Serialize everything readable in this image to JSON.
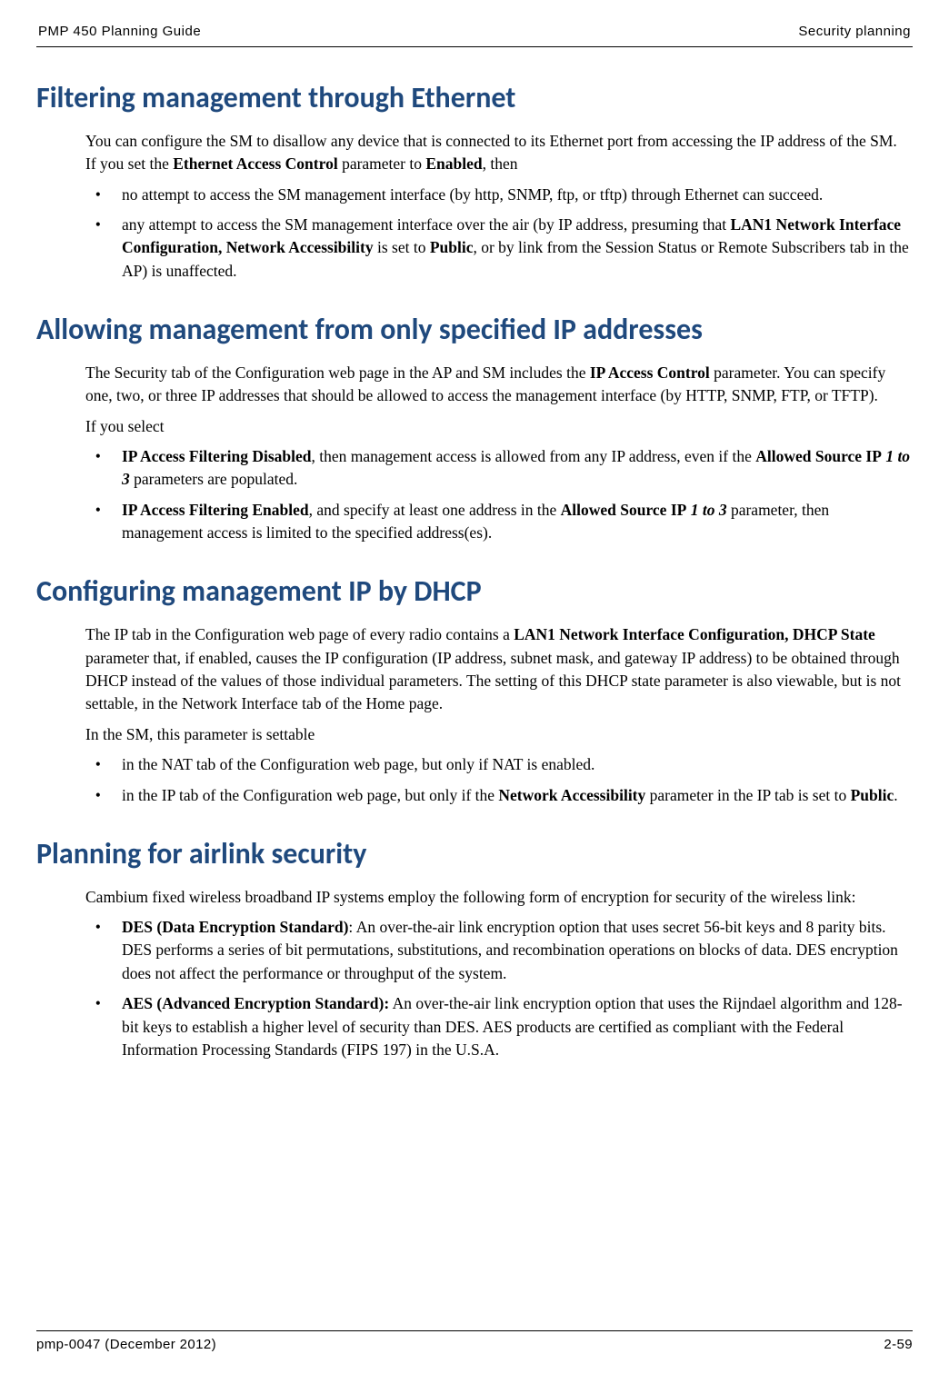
{
  "header": {
    "left": "PMP 450 Planning Guide",
    "right": "Security planning"
  },
  "footer": {
    "left": "pmp-0047 (December 2012)",
    "right": "2-59"
  },
  "colors": {
    "heading": "#1f497d",
    "body_text": "#000000",
    "background": "#ffffff",
    "rule": "#000000"
  },
  "typography": {
    "heading_family": "Calibri",
    "heading_size_pt": 24,
    "heading_weight": 700,
    "body_family": "Times New Roman",
    "body_size_pt": 13,
    "header_footer_family": "Verdana",
    "header_footer_size_pt": 11
  },
  "sections": [
    {
      "heading": "Filtering management through Ethernet",
      "intro_html": "You can configure the SM to disallow any device that is connected to its Ethernet port from accessing the IP address of the SM. If you set the <b>Ethernet Access Control</b> parameter to <b>Enabled</b>, then",
      "bullets_html": [
        "no attempt to access the SM management interface (by http, SNMP, ftp, or tftp) through Ethernet can succeed.",
        "any attempt to access the SM management interface over the air (by IP address, presuming that <b>LAN1 Network Interface Configuration, Network Accessibility</b> is set to <b>Public</b>, or by link from the Session Status or Remote Subscribers tab in the AP) is unaffected."
      ]
    },
    {
      "heading": "Allowing management from only specified IP addresses",
      "intro_html": "The Security tab of the Configuration web page in the AP and SM includes the <b>IP Access Control</b> parameter. You can specify one, two, or three IP addresses that should be allowed to access the management interface (by HTTP, SNMP, FTP, or TFTP).",
      "intro2_html": "If you select",
      "bullets_html": [
        "<b>IP Access Filtering Disabled</b>, then management access is allowed from any IP address, even if the <b>Allowed Source IP</b> <b><i>1 to 3</i></b> parameters are populated.",
        "<b>IP Access Filtering Enabled</b>, and specify at least one address in the <b>Allowed Source IP</b> <b><i>1 to 3</i></b> parameter, then management access is limited to the specified address(es)."
      ]
    },
    {
      "heading": "Configuring management IP by DHCP",
      "intro_html": "The IP tab in the Configuration web page of every radio contains a <b>LAN1 Network Interface Configuration, DHCP State</b> parameter that, if enabled, causes the IP configuration (IP address, subnet mask, and gateway IP address) to be obtained through DHCP instead of the values of those individual parameters. The setting of this DHCP state parameter is also viewable, but is not settable, in the Network Interface tab of the Home page.",
      "intro2_html": "In the SM, this parameter is settable",
      "bullets_html": [
        "in the NAT tab of the Configuration web page, but only if NAT is enabled.",
        "in the IP tab of the Configuration web page, but only if the <b>Network Accessibility</b> parameter in the IP tab is set to <b>Public</b>."
      ]
    },
    {
      "heading": "Planning for airlink security",
      "intro_html": "Cambium fixed wireless broadband IP systems employ the following form of encryption for security of the wireless link:",
      "bullets_html": [
        "<b>DES (Data Encryption Standard)</b>:  An over-the-air link encryption option that uses secret 56-bit keys and 8 parity bits.  DES performs a series of bit permutations, substitutions, and recombination operations on blocks of data.  DES encryption does not affect the performance or throughput of the system.",
        "<b>AES (Advanced Encryption Standard):</b>  An over-the-air link encryption option that uses the Rijndael algorithm and 128-bit keys to establish a higher level of security than DES.  AES products are certified as compliant with the Federal Information Processing Standards (FIPS 197) in the U.S.A."
      ]
    }
  ]
}
